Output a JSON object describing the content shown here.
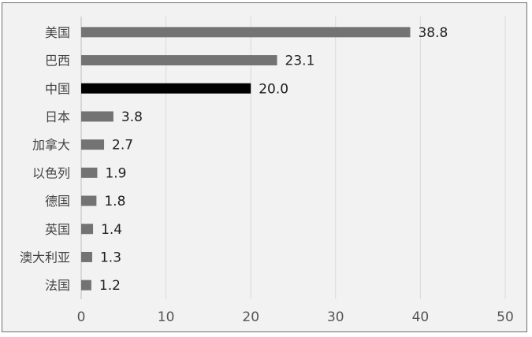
{
  "chart_data": {
    "type": "bar",
    "orientation": "horizontal",
    "title": "",
    "xlabel": "",
    "ylabel": "",
    "categories": [
      "美国",
      "巴西",
      "中国",
      "日本",
      "加拿大",
      "以色列",
      "德国",
      "英国",
      "澳大利亚",
      "法国"
    ],
    "values": [
      38.8,
      23.1,
      20.0,
      3.8,
      2.7,
      1.9,
      1.8,
      1.4,
      1.3,
      1.2
    ],
    "value_labels": [
      "38.8",
      "23.1",
      "20.0",
      "3.8",
      "2.7",
      "1.9",
      "1.8",
      "1.4",
      "1.3",
      "1.2"
    ],
    "xlim": [
      0,
      50
    ],
    "xticks": [
      0,
      10,
      20,
      30,
      40,
      50
    ],
    "xtick_labels": [
      "0",
      "10",
      "20",
      "30",
      "40",
      "50"
    ],
    "grid": "vertical",
    "legend": "none",
    "colors": {
      "bar": "#737373",
      "highlight": "#000000",
      "background": "#f2f2f2",
      "grid": "#d9d9d9"
    },
    "highlight_category": "中国"
  }
}
